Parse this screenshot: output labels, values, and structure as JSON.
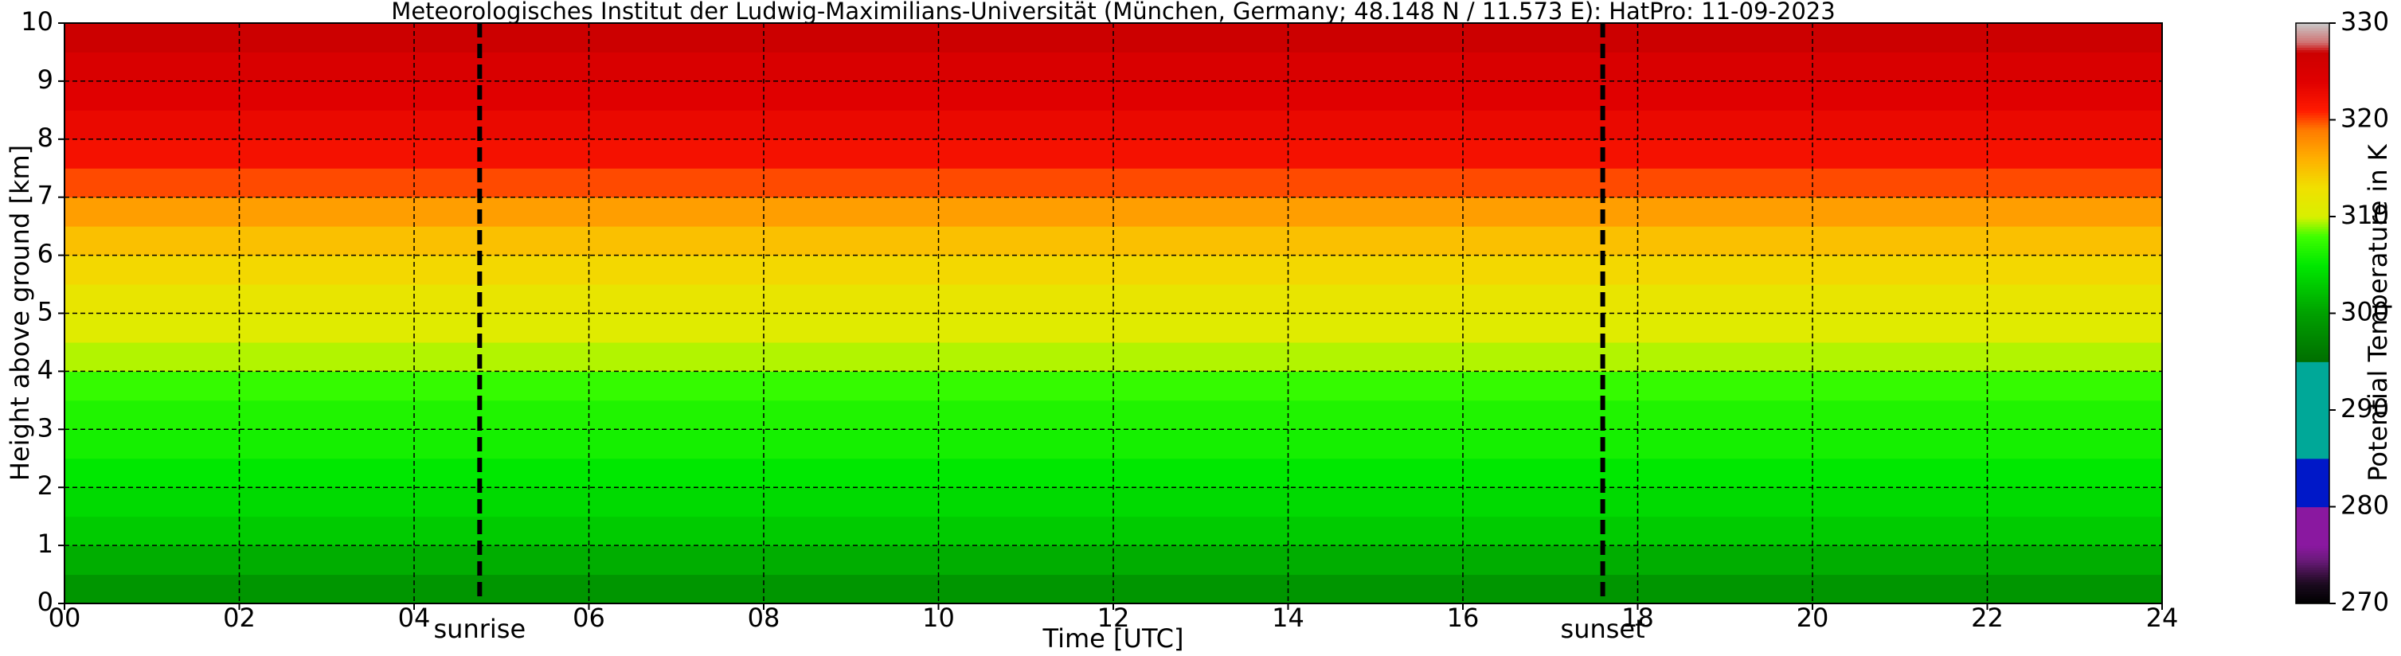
{
  "chart_data": {
    "type": "heatmap",
    "title": "Meteorologisches Institut der Ludwig-Maximilians-Universität (München, Germany; 48.148 N / 11.573 E):    HatPro: 11-09-2023",
    "x_label": "Time [UTC]",
    "y_label": "Height above ground [km]",
    "colorbar_label": "Potential Temperature in K",
    "xlim": [
      0,
      24
    ],
    "xticks": [
      {
        "value": 0,
        "label": "00"
      },
      {
        "value": 2,
        "label": "02"
      },
      {
        "value": 4,
        "label": "04"
      },
      {
        "value": 6,
        "label": "06"
      },
      {
        "value": 8,
        "label": "08"
      },
      {
        "value": 10,
        "label": "10"
      },
      {
        "value": 12,
        "label": "12"
      },
      {
        "value": 14,
        "label": "14"
      },
      {
        "value": 16,
        "label": "16"
      },
      {
        "value": 18,
        "label": "18"
      },
      {
        "value": 20,
        "label": "20"
      },
      {
        "value": 22,
        "label": "22"
      },
      {
        "value": 24,
        "label": "24"
      }
    ],
    "ylim": [
      0,
      10
    ],
    "yticks": [
      0,
      1,
      2,
      3,
      4,
      5,
      6,
      7,
      8,
      9,
      10
    ],
    "grid": true,
    "height_bins": [
      0,
      0.5,
      1,
      1.5,
      2,
      2.5,
      3,
      3.5,
      4,
      4.5,
      5,
      5.5,
      6,
      6.5,
      7,
      7.5,
      8,
      8.5,
      9,
      9.5,
      10
    ],
    "values": [
      299,
      301,
      303,
      304,
      305,
      306,
      306.5,
      307.5,
      309.5,
      311,
      312,
      313.5,
      315,
      317,
      320,
      322,
      323,
      324,
      325,
      327
    ],
    "clim": [
      270,
      330
    ],
    "cticks": [
      270,
      280,
      290,
      300,
      310,
      320,
      330
    ],
    "colorscale": [
      [
        270,
        "#000000"
      ],
      [
        272,
        "#1a0a1e"
      ],
      [
        273,
        "#3a1040"
      ],
      [
        274.5,
        "#6a1a7a"
      ],
      [
        276,
        "#8a18a0"
      ],
      [
        280,
        "#8a18a0"
      ],
      [
        280,
        "#0018c8"
      ],
      [
        285,
        "#0018c8"
      ],
      [
        285,
        "#00a898"
      ],
      [
        295,
        "#00a898"
      ],
      [
        295,
        "#006e00"
      ],
      [
        300,
        "#00a000"
      ],
      [
        305,
        "#00e800"
      ],
      [
        308,
        "#40ff00"
      ],
      [
        310,
        "#d8f000"
      ],
      [
        313,
        "#f0e000"
      ],
      [
        316,
        "#ffb000"
      ],
      [
        319,
        "#ff7a00"
      ],
      [
        321,
        "#ff1a00"
      ],
      [
        324,
        "#e00000"
      ],
      [
        327,
        "#cc0000"
      ],
      [
        328,
        "#d07070"
      ],
      [
        330,
        "#c8c8c8"
      ]
    ],
    "annotations": [
      {
        "x": 4.75,
        "label": "sunrise"
      },
      {
        "x": 17.6,
        "label": "sunset"
      }
    ]
  }
}
